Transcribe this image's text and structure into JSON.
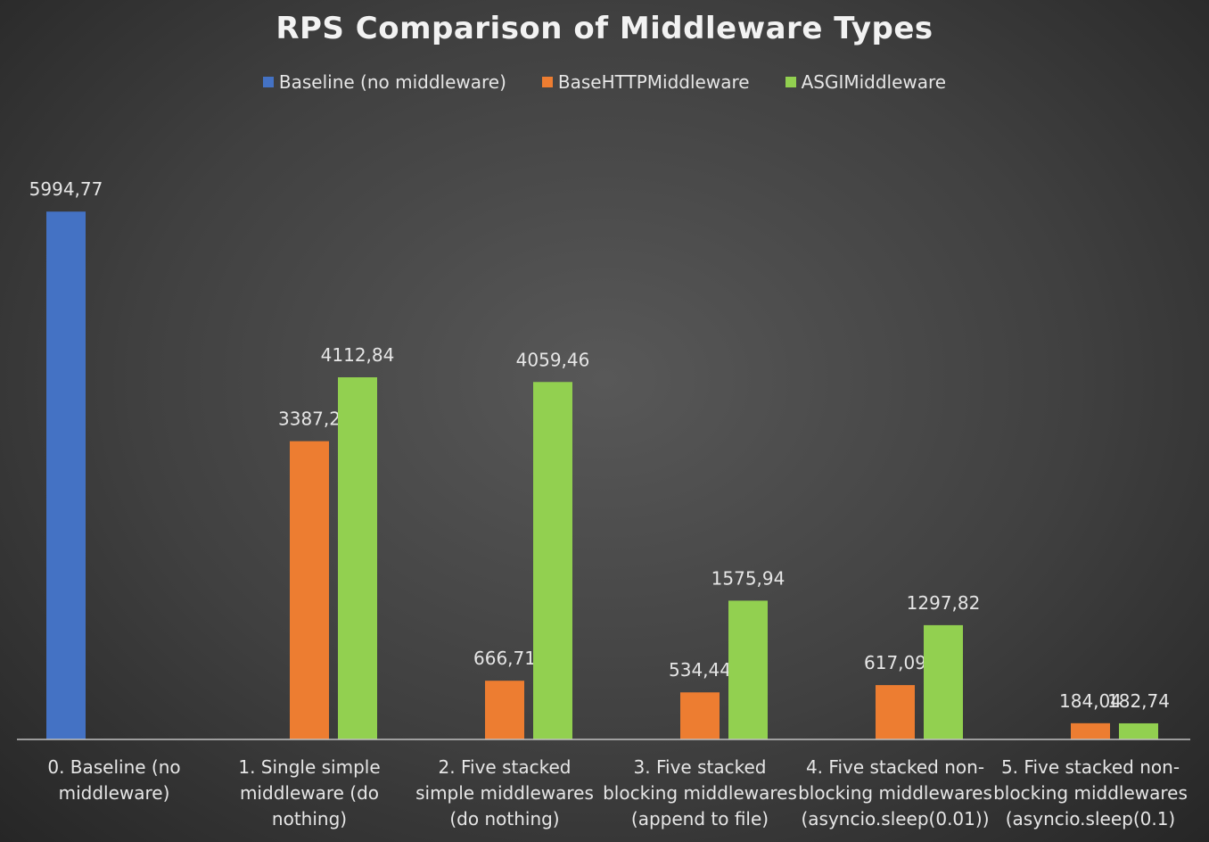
{
  "chart_data": {
    "type": "bar",
    "title": "RPS Comparison of Middleware Types",
    "categories": [
      "0. Baseline (no middleware)",
      "1. Single simple middleware (do nothing)",
      "2. Five stacked simple middlewares (do nothing)",
      "3. Five stacked blocking middlewares (append to file)",
      "4. Five stacked non-blocking middlewares (asyncio.sleep(0.01))",
      "5. Five stacked non-blocking middlewares (asyncio.sleep(0.1)"
    ],
    "series": [
      {
        "name": "Baseline (no middleware)",
        "color": "#4472c4",
        "values": [
          5994.77,
          null,
          null,
          null,
          null,
          null
        ],
        "value_labels": [
          "5994,77",
          null,
          null,
          null,
          null,
          null
        ]
      },
      {
        "name": "BaseHTTPMiddleware",
        "color": "#ed7d31",
        "values": [
          null,
          3387.2,
          666.71,
          534.44,
          617.09,
          184.04
        ],
        "value_labels": [
          null,
          "3387,2",
          "666,71",
          "534,44",
          "617,09",
          "184,04"
        ]
      },
      {
        "name": "ASGIMiddleware",
        "color": "#92d050",
        "values": [
          null,
          4112.84,
          4059.46,
          1575.94,
          1297.82,
          182.74
        ],
        "value_labels": [
          null,
          "4112,84",
          "4059,46",
          "1575,94",
          "1297,82",
          "182,74"
        ]
      }
    ],
    "ylim": [
      0,
      7000
    ]
  }
}
